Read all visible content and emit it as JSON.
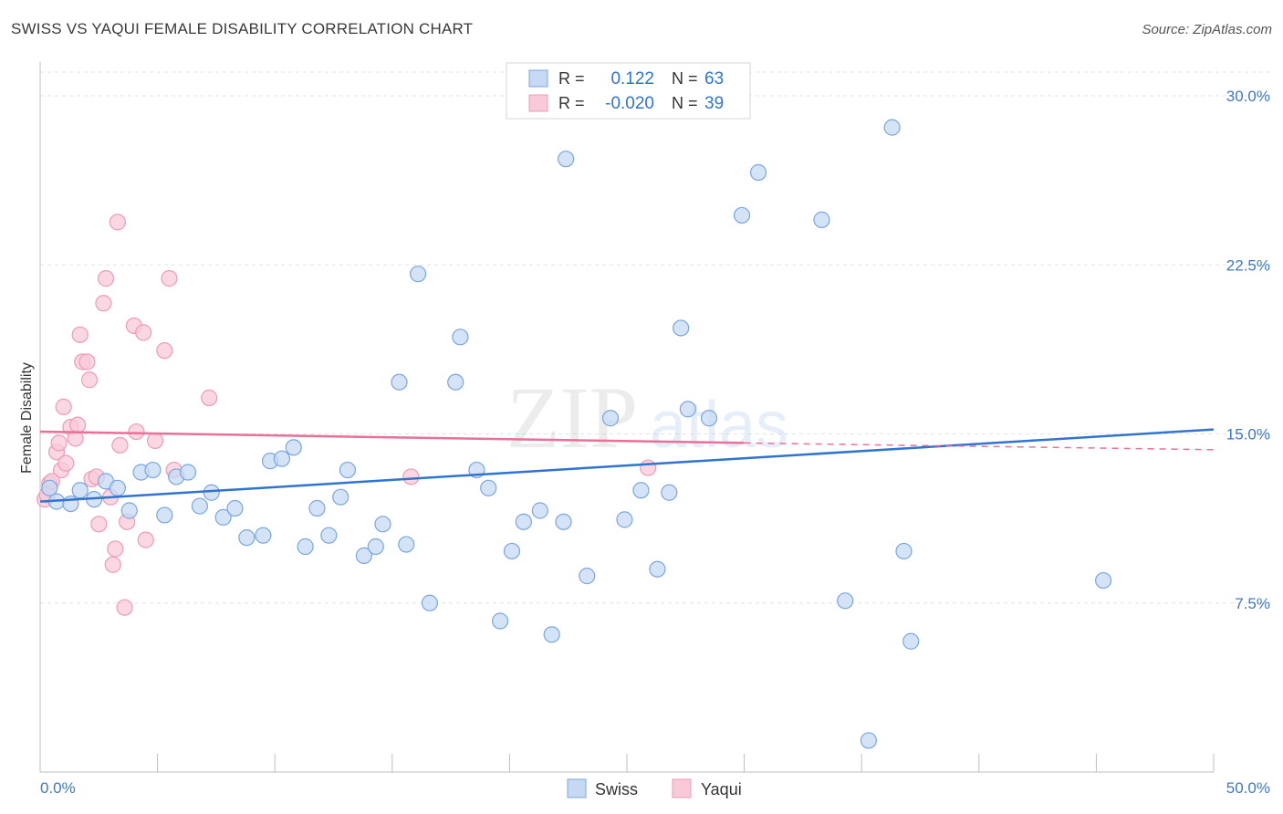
{
  "header": {
    "title": "SWISS VS YAQUI FEMALE DISABILITY CORRELATION CHART",
    "source": "Source: ZipAtlas.com"
  },
  "watermark": {
    "zip": "ZIP",
    "atlas": "atlas"
  },
  "legend_stats": {
    "r_label": "R =",
    "n_label": "N =",
    "rows": [
      {
        "series": "Swiss",
        "r": "0.122",
        "n": "63",
        "color": "#6a9ee0"
      },
      {
        "series": "Yaqui",
        "r": "-0.020",
        "n": "39",
        "color": "#f0a2bd"
      }
    ]
  },
  "colors": {
    "swiss_fill": "#c5d9f3",
    "swiss_stroke": "#7aa6e0",
    "swiss_line": "#2f74d0",
    "yaqui_fill": "#f8cad8",
    "yaqui_stroke": "#ee9bb6",
    "yaqui_line": "#e8709a",
    "axis_label": "#3d78c8",
    "grid": "#e3e3e3"
  },
  "chart_data": {
    "type": "scatter",
    "title": "SWISS VS YAQUI FEMALE DISABILITY CORRELATION CHART",
    "xlabel": "",
    "ylabel": "Female Disability",
    "xlim": [
      0,
      50
    ],
    "ylim": [
      0,
      31.5
    ],
    "x_tick_labels": [
      "0.0%",
      "50.0%"
    ],
    "y_ticks": [
      7.5,
      15.0,
      22.5,
      30.0
    ],
    "y_tick_labels": [
      "7.5%",
      "15.0%",
      "22.5%",
      "30.0%"
    ],
    "grid": true,
    "legend": "bottom-center",
    "series": [
      {
        "name": "Swiss",
        "trend": {
          "x": [
            0,
            50
          ],
          "y": [
            12.0,
            15.2
          ]
        },
        "points": [
          [
            0.4,
            12.6
          ],
          [
            0.7,
            12.0
          ],
          [
            1.3,
            11.9
          ],
          [
            1.7,
            12.5
          ],
          [
            2.3,
            12.1
          ],
          [
            2.8,
            12.9
          ],
          [
            3.3,
            12.6
          ],
          [
            3.8,
            11.6
          ],
          [
            4.3,
            13.3
          ],
          [
            4.8,
            13.4
          ],
          [
            5.3,
            11.4
          ],
          [
            5.8,
            13.1
          ],
          [
            6.3,
            13.3
          ],
          [
            6.8,
            11.8
          ],
          [
            7.3,
            12.4
          ],
          [
            7.8,
            11.3
          ],
          [
            8.3,
            11.7
          ],
          [
            8.8,
            10.4
          ],
          [
            9.5,
            10.5
          ],
          [
            9.8,
            13.8
          ],
          [
            10.3,
            13.9
          ],
          [
            10.8,
            14.4
          ],
          [
            11.3,
            10.0
          ],
          [
            11.8,
            11.7
          ],
          [
            12.3,
            10.5
          ],
          [
            12.8,
            12.2
          ],
          [
            13.1,
            13.4
          ],
          [
            13.8,
            9.6
          ],
          [
            14.3,
            10.0
          ],
          [
            14.6,
            11.0
          ],
          [
            15.3,
            17.3
          ],
          [
            15.6,
            10.1
          ],
          [
            16.1,
            22.1
          ],
          [
            16.6,
            7.5
          ],
          [
            17.7,
            17.3
          ],
          [
            17.9,
            19.3
          ],
          [
            18.6,
            13.4
          ],
          [
            19.1,
            12.6
          ],
          [
            19.6,
            6.7
          ],
          [
            20.1,
            9.8
          ],
          [
            20.6,
            11.1
          ],
          [
            21.3,
            11.6
          ],
          [
            21.8,
            6.1
          ],
          [
            22.3,
            11.1
          ],
          [
            22.4,
            27.2
          ],
          [
            23.3,
            8.7
          ],
          [
            24.3,
            15.7
          ],
          [
            24.9,
            11.2
          ],
          [
            25.6,
            12.5
          ],
          [
            26.3,
            9.0
          ],
          [
            26.8,
            12.4
          ],
          [
            27.3,
            19.7
          ],
          [
            27.6,
            16.1
          ],
          [
            28.5,
            15.7
          ],
          [
            29.9,
            24.7
          ],
          [
            30.6,
            26.6
          ],
          [
            33.3,
            24.5
          ],
          [
            34.3,
            7.6
          ],
          [
            36.3,
            28.6
          ],
          [
            35.3,
            1.4
          ],
          [
            36.8,
            9.8
          ],
          [
            37.1,
            5.8
          ],
          [
            45.3,
            8.5
          ]
        ]
      },
      {
        "name": "Yaqui",
        "trend": {
          "x": [
            0,
            30
          ],
          "y": [
            15.1,
            14.6
          ]
        },
        "trend_dashed": {
          "x": [
            30,
            50
          ],
          "y": [
            14.6,
            14.3
          ]
        },
        "points": [
          [
            0.2,
            12.1
          ],
          [
            0.4,
            12.8
          ],
          [
            0.7,
            14.2
          ],
          [
            0.8,
            14.6
          ],
          [
            0.9,
            13.4
          ],
          [
            1.0,
            16.2
          ],
          [
            1.1,
            13.7
          ],
          [
            1.3,
            15.3
          ],
          [
            1.5,
            14.8
          ],
          [
            1.6,
            15.4
          ],
          [
            1.7,
            19.4
          ],
          [
            1.8,
            18.2
          ],
          [
            2.0,
            18.2
          ],
          [
            2.1,
            17.4
          ],
          [
            2.2,
            13.0
          ],
          [
            2.4,
            13.1
          ],
          [
            2.5,
            11.0
          ],
          [
            2.7,
            20.8
          ],
          [
            2.8,
            21.9
          ],
          [
            3.0,
            12.2
          ],
          [
            3.1,
            9.2
          ],
          [
            3.2,
            9.9
          ],
          [
            3.3,
            24.4
          ],
          [
            3.4,
            14.5
          ],
          [
            3.6,
            7.3
          ],
          [
            3.7,
            11.1
          ],
          [
            4.0,
            19.8
          ],
          [
            4.1,
            15.1
          ],
          [
            4.4,
            19.5
          ],
          [
            4.5,
            10.3
          ],
          [
            4.9,
            14.7
          ],
          [
            5.3,
            18.7
          ],
          [
            5.5,
            21.9
          ],
          [
            5.7,
            13.4
          ],
          [
            7.2,
            16.6
          ],
          [
            15.8,
            13.1
          ],
          [
            25.9,
            13.5
          ],
          [
            0.3,
            12.3
          ],
          [
            0.5,
            12.9
          ]
        ]
      }
    ]
  }
}
